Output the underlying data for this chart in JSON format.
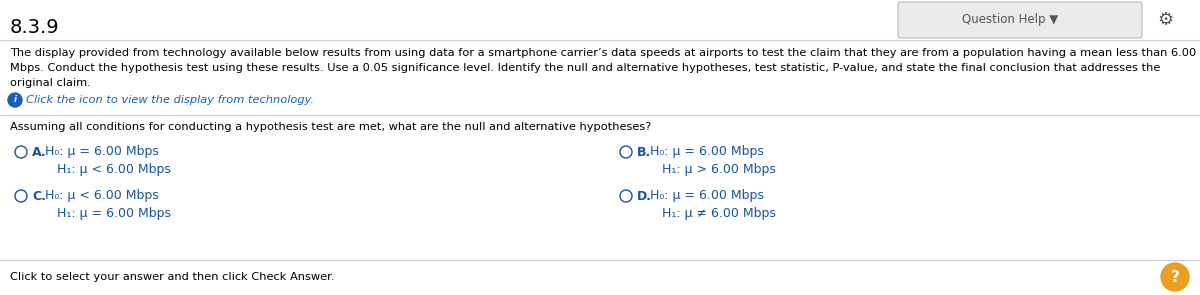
{
  "title": "8.3.9",
  "question_help_text": "Question Help ▼",
  "gear_symbol": "⚙",
  "body_line1": "The display provided from technology available below results from using data for a smartphone carrier’s data speeds at airports to test the claim that they are from a population having a mean less than 6.00",
  "body_line2": "Mbps. Conduct the hypothesis test using these results. Use a 0.05 significance level. Identify the null and alternative hypotheses, test statistic, P-value, and state the final conclusion that addresses the",
  "body_line3": "original claim.",
  "icon_text": "Click the icon to view the display from technology.",
  "question_text": "Assuming all conditions for conducting a hypothesis test are met, what are the null and alternative hypotheses?",
  "opt_A_label": "A.",
  "opt_A_h0": "H₀: μ = 6.00 Mbps",
  "opt_A_h1": "H₁: μ < 6.00 Mbps",
  "opt_B_label": "B.",
  "opt_B_h0": "H₀: μ = 6.00 Mbps",
  "opt_B_h1": "H₁: μ > 6.00 Mbps",
  "opt_C_label": "C.",
  "opt_C_h0": "H₀: μ < 6.00 Mbps",
  "opt_C_h1": "H₁: μ = 6.00 Mbps",
  "opt_D_label": "D.",
  "opt_D_h0": "H₀: μ = 6.00 Mbps",
  "opt_D_h1": "H₁: μ ≠ 6.00 Mbps",
  "bottom_text": "Click to select your answer and then click Check Answer.",
  "bg_color": "#ffffff",
  "text_color": "#000000",
  "title_color": "#000000",
  "option_text_color": "#1a52a0",
  "circle_color": "#1a52a0",
  "icon_color": "#1a5fb4",
  "help_box_color": "#ebebeb",
  "help_box_border": "#bbbbbb",
  "question_help_color": "#555555",
  "bottom_circle_color": "#e8a020",
  "separator_color": "#cccccc",
  "body_fontsize": 8.2,
  "option_fontsize": 9.0,
  "title_fontsize": 14,
  "qhelp_fontsize": 8.5
}
